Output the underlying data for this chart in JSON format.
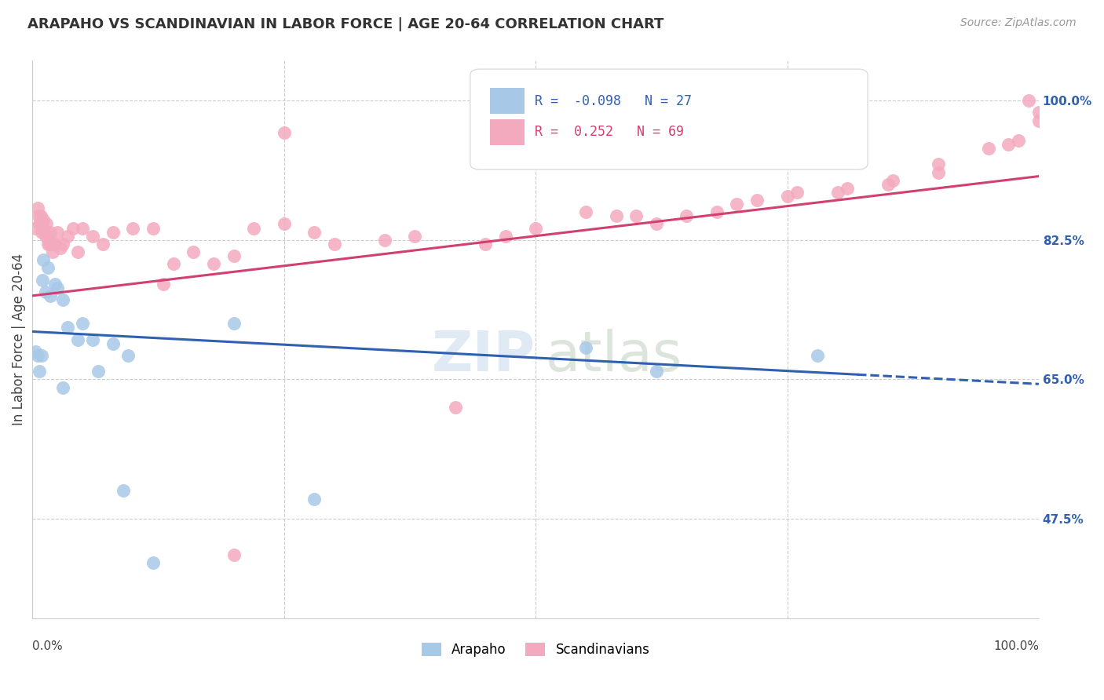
{
  "title": "ARAPAHO VS SCANDINAVIAN IN LABOR FORCE | AGE 20-64 CORRELATION CHART",
  "source": "Source: ZipAtlas.com",
  "ylabel": "In Labor Force | Age 20-64",
  "legend_label1": "Arapaho",
  "legend_label2": "Scandinavians",
  "R1": -0.098,
  "N1": 27,
  "R2": 0.252,
  "N2": 69,
  "arapaho_color": "#a8c8e8",
  "scandinavian_color": "#f4aabe",
  "arapaho_line_color": "#3060b0",
  "scandinavian_line_color": "#d04070",
  "right_ytick_labels": [
    "47.5%",
    "65.0%",
    "82.5%",
    "100.0%"
  ],
  "right_ytick_values": [
    0.475,
    0.65,
    0.825,
    1.0
  ],
  "xlim": [
    0.0,
    1.0
  ],
  "ylim": [
    0.35,
    1.05
  ],
  "arapaho_x": [
    0.003,
    0.005,
    0.007,
    0.009,
    0.01,
    0.011,
    0.013,
    0.015,
    0.018,
    0.022,
    0.025,
    0.03,
    0.035,
    0.05,
    0.06,
    0.08,
    0.095,
    0.12,
    0.2,
    0.28,
    0.55,
    0.62,
    0.78,
    0.03,
    0.045,
    0.065,
    0.09
  ],
  "arapaho_y": [
    0.685,
    0.68,
    0.66,
    0.68,
    0.775,
    0.8,
    0.76,
    0.79,
    0.755,
    0.77,
    0.765,
    0.75,
    0.715,
    0.72,
    0.7,
    0.695,
    0.68,
    0.42,
    0.72,
    0.5,
    0.69,
    0.66,
    0.68,
    0.64,
    0.7,
    0.66,
    0.51
  ],
  "scandinavian_x": [
    0.003,
    0.005,
    0.006,
    0.007,
    0.008,
    0.009,
    0.01,
    0.011,
    0.012,
    0.013,
    0.014,
    0.015,
    0.016,
    0.017,
    0.018,
    0.019,
    0.02,
    0.022,
    0.025,
    0.028,
    0.03,
    0.035,
    0.04,
    0.045,
    0.05,
    0.06,
    0.07,
    0.08,
    0.1,
    0.12,
    0.14,
    0.16,
    0.18,
    0.2,
    0.22,
    0.25,
    0.28,
    0.3,
    0.35,
    0.38,
    0.13,
    0.45,
    0.25,
    0.5,
    0.55,
    0.6,
    0.65,
    0.7,
    0.75,
    0.8,
    0.2,
    0.85,
    0.9,
    0.95,
    0.97,
    0.98,
    0.99,
    1.0,
    1.0,
    0.42,
    0.47,
    0.58,
    0.62,
    0.68,
    0.72,
    0.76,
    0.81,
    0.855,
    0.9
  ],
  "scandinavian_y": [
    0.84,
    0.865,
    0.855,
    0.845,
    0.855,
    0.835,
    0.84,
    0.85,
    0.835,
    0.83,
    0.845,
    0.82,
    0.825,
    0.82,
    0.835,
    0.82,
    0.81,
    0.82,
    0.835,
    0.815,
    0.82,
    0.83,
    0.84,
    0.81,
    0.84,
    0.83,
    0.82,
    0.835,
    0.84,
    0.84,
    0.795,
    0.81,
    0.795,
    0.805,
    0.84,
    0.845,
    0.835,
    0.82,
    0.825,
    0.83,
    0.77,
    0.82,
    0.96,
    0.84,
    0.86,
    0.855,
    0.855,
    0.87,
    0.88,
    0.885,
    0.43,
    0.895,
    0.91,
    0.94,
    0.945,
    0.95,
    1.0,
    0.975,
    0.985,
    0.615,
    0.83,
    0.855,
    0.845,
    0.86,
    0.875,
    0.885,
    0.89,
    0.9,
    0.92
  ],
  "blue_line_x0": 0.0,
  "blue_line_y0": 0.71,
  "blue_line_x1": 0.82,
  "blue_line_y1": 0.656,
  "pink_line_x0": 0.0,
  "pink_line_y0": 0.755,
  "pink_line_x1": 1.0,
  "pink_line_y1": 0.905,
  "watermark_zip_color": "#c8d8ea",
  "watermark_atlas_color": "#c8dac8"
}
